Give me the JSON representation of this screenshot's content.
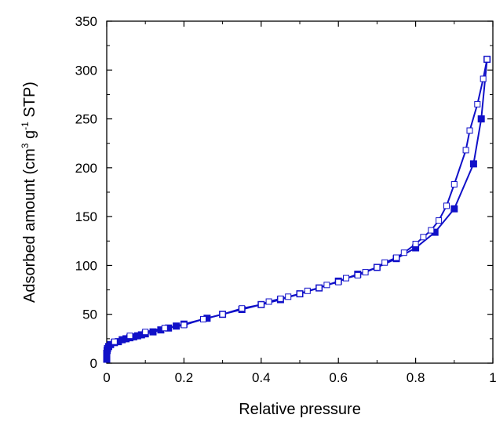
{
  "chart_data": {
    "type": "scatter",
    "title": "",
    "xlabel": "Relative pressure",
    "ylabel": {
      "prefix": "Adsorbed amount (cm",
      "sup1": "3",
      "mid": " g",
      "sup2": "-1",
      "suffix": " STP)"
    },
    "xlim": [
      0,
      1
    ],
    "ylim": [
      0,
      350
    ],
    "xticks": [
      "0",
      "0.2",
      "0.4",
      "0.6",
      "0.8",
      "1"
    ],
    "yticks": [
      "0",
      "50",
      "100",
      "150",
      "200",
      "250",
      "300",
      "350"
    ],
    "grid": false,
    "legend": "none",
    "color": "#1010c8",
    "series": [
      {
        "marker": "filled-square",
        "x": [
          0.0,
          0.0,
          0.0,
          0.001,
          0.002,
          0.005,
          0.01,
          0.02,
          0.03,
          0.04,
          0.05,
          0.06,
          0.07,
          0.08,
          0.09,
          0.1,
          0.12,
          0.14,
          0.16,
          0.18,
          0.2,
          0.26,
          0.3,
          0.35,
          0.4,
          0.45,
          0.5,
          0.55,
          0.6,
          0.65,
          0.7,
          0.75,
          0.8,
          0.85,
          0.9,
          0.95,
          0.97,
          0.985
        ],
        "y": [
          4,
          7,
          10,
          13,
          15,
          17,
          19,
          21,
          22,
          24,
          25,
          26,
          27,
          28,
          29,
          30,
          32,
          34,
          36,
          38,
          40,
          46,
          50,
          55,
          60,
          65,
          71,
          77,
          84,
          91,
          98,
          107,
          118,
          134,
          158,
          204,
          250,
          311
        ]
      },
      {
        "marker": "open-square",
        "x": [
          0.02,
          0.06,
          0.1,
          0.15,
          0.2,
          0.25,
          0.3,
          0.35,
          0.4,
          0.42,
          0.45,
          0.47,
          0.5,
          0.52,
          0.55,
          0.57,
          0.6,
          0.62,
          0.65,
          0.67,
          0.7,
          0.72,
          0.75,
          0.77,
          0.8,
          0.82,
          0.84,
          0.86,
          0.88,
          0.9,
          0.93,
          0.94,
          0.96,
          0.975,
          0.985
        ],
        "y": [
          22,
          28,
          32,
          36,
          39,
          45,
          50,
          56,
          60,
          63,
          66,
          68,
          71,
          74,
          77,
          80,
          83,
          87,
          90,
          93,
          98,
          103,
          108,
          113,
          122,
          129,
          136,
          146,
          161,
          183,
          218,
          238,
          265,
          291,
          311
        ]
      }
    ]
  }
}
